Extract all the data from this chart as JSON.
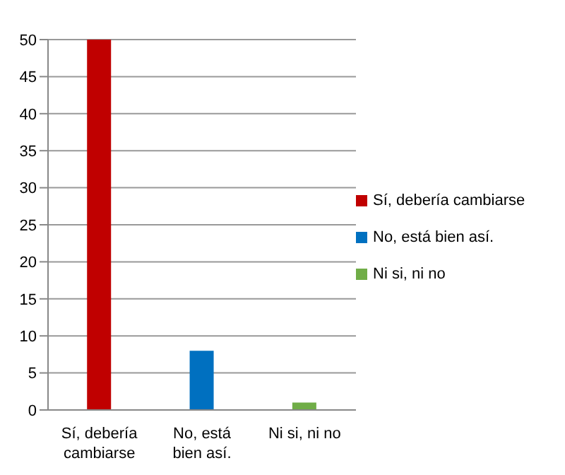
{
  "chart_data": {
    "type": "bar",
    "categories": [
      "Sí, debería cambiarse",
      "No, está bien así.",
      "Ni si, ni no"
    ],
    "series": [
      {
        "name": "Sí, debería cambiarse",
        "color": "#c00000",
        "values": [
          50,
          null,
          null
        ]
      },
      {
        "name": "No, está bien así.",
        "color": "#0070c0",
        "values": [
          null,
          8,
          null
        ]
      },
      {
        "name": "Ni si, ni no",
        "color": "#70ad47",
        "values": [
          null,
          null,
          1
        ]
      }
    ],
    "stacked": true,
    "ylim": [
      0,
      50
    ],
    "yticks": [
      0,
      5,
      10,
      15,
      20,
      25,
      30,
      35,
      40,
      45,
      50
    ],
    "grid": "y",
    "legend": "right"
  }
}
